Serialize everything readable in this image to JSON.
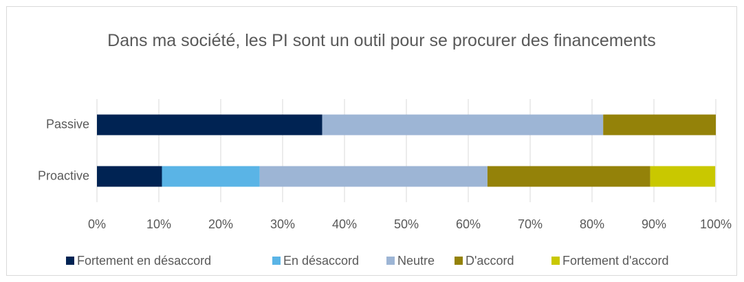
{
  "chart_data": {
    "type": "stacked_barh",
    "title": "Dans ma société, les PI sont un outil pour se procurer des financements",
    "categories": [
      "Passive",
      "Proactive"
    ],
    "series": [
      {
        "name": "Fortement en désaccord",
        "color": "#002353",
        "values": [
          36.4,
          10.5
        ]
      },
      {
        "name": "En désaccord",
        "color": "#5ab4e6",
        "values": [
          0,
          15.8
        ]
      },
      {
        "name": "Neutre",
        "color": "#9db5d5",
        "values": [
          45.4,
          36.8
        ]
      },
      {
        "name": "D'accord",
        "color": "#948209",
        "values": [
          18.2,
          26.3
        ]
      },
      {
        "name": "Fortement d'accord",
        "color": "#c9c800",
        "values": [
          0,
          10.5
        ]
      }
    ],
    "xlim": [
      0,
      100
    ],
    "xticks": [
      {
        "value": 0,
        "label": "0%"
      },
      {
        "value": 10,
        "label": "10%"
      },
      {
        "value": 20,
        "label": "20%"
      },
      {
        "value": 30,
        "label": "30%"
      },
      {
        "value": 40,
        "label": "40%"
      },
      {
        "value": 50,
        "label": "50%"
      },
      {
        "value": 60,
        "label": "60%"
      },
      {
        "value": 70,
        "label": "70%"
      },
      {
        "value": 80,
        "label": "80%"
      },
      {
        "value": 90,
        "label": "90%"
      },
      {
        "value": 100,
        "label": "100%"
      }
    ],
    "grid": true,
    "legend": "bottom"
  }
}
